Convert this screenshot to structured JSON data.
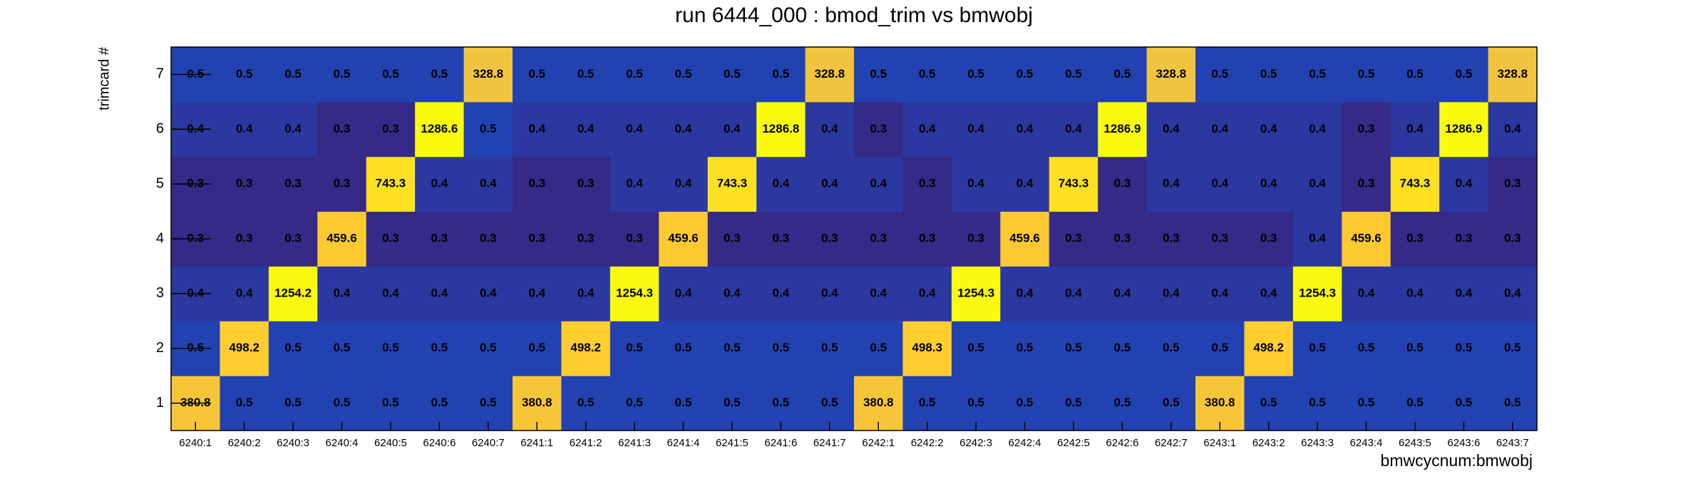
{
  "chart_data": {
    "type": "heatmap",
    "title": "run 6444_000 : bmod_trim vs bmwobj",
    "x_label": "bmwcycnum:bmwobj",
    "y_label": "trimcard #",
    "categories": [
      "6240:1",
      "6240:2",
      "6240:3",
      "6240:4",
      "6240:5",
      "6240:6",
      "6240:7",
      "6241:1",
      "6241:2",
      "6241:3",
      "6241:4",
      "6241:5",
      "6241:6",
      "6241:7",
      "6242:1",
      "6242:2",
      "6242:3",
      "6242:4",
      "6242:5",
      "6242:6",
      "6242:7",
      "6243:1",
      "6243:2",
      "6243:3",
      "6243:4",
      "6243:5",
      "6243:6",
      "6243:7"
    ],
    "y_categories": [
      1,
      2,
      3,
      4,
      5,
      6,
      7
    ],
    "z": [
      [
        380.8,
        0.5,
        0.5,
        0.5,
        0.5,
        0.5,
        0.5,
        380.8,
        0.5,
        0.5,
        0.5,
        0.5,
        0.5,
        0.5,
        380.8,
        0.5,
        0.5,
        0.5,
        0.5,
        0.5,
        0.5,
        380.8,
        0.5,
        0.5,
        0.5,
        0.5,
        0.5,
        0.5
      ],
      [
        0.5,
        498.2,
        0.5,
        0.5,
        0.5,
        0.5,
        0.5,
        0.5,
        498.2,
        0.5,
        0.5,
        0.5,
        0.5,
        0.5,
        0.5,
        498.3,
        0.5,
        0.5,
        0.5,
        0.5,
        0.5,
        0.5,
        498.2,
        0.5,
        0.5,
        0.5,
        0.5,
        0.5
      ],
      [
        0.4,
        0.4,
        1254.2,
        0.4,
        0.4,
        0.4,
        0.4,
        0.4,
        0.4,
        1254.3,
        0.4,
        0.4,
        0.4,
        0.4,
        0.4,
        0.4,
        1254.3,
        0.4,
        0.4,
        0.4,
        0.4,
        0.4,
        0.4,
        1254.3,
        0.4,
        0.4,
        0.4,
        0.4
      ],
      [
        0.3,
        0.3,
        0.3,
        459.6,
        0.3,
        0.3,
        0.3,
        0.3,
        0.3,
        0.3,
        459.6,
        0.3,
        0.3,
        0.3,
        0.3,
        0.3,
        0.3,
        459.6,
        0.3,
        0.3,
        0.3,
        0.3,
        0.3,
        0.4,
        459.6,
        0.3,
        0.3,
        0.3
      ],
      [
        0.3,
        0.3,
        0.3,
        0.3,
        743.3,
        0.4,
        0.4,
        0.3,
        0.3,
        0.4,
        0.4,
        743.3,
        0.4,
        0.4,
        0.4,
        0.3,
        0.4,
        0.4,
        743.3,
        0.3,
        0.4,
        0.4,
        0.4,
        0.4,
        0.3,
        743.3,
        0.4,
        0.3
      ],
      [
        0.4,
        0.4,
        0.4,
        0.3,
        0.3,
        1286.6,
        0.5,
        0.4,
        0.4,
        0.4,
        0.4,
        0.4,
        1286.8,
        0.4,
        0.3,
        0.4,
        0.4,
        0.4,
        0.4,
        1286.9,
        0.4,
        0.4,
        0.4,
        0.4,
        0.3,
        0.4,
        1286.9,
        0.4
      ],
      [
        0.5,
        0.5,
        0.5,
        0.5,
        0.5,
        0.5,
        328.8,
        0.5,
        0.5,
        0.5,
        0.5,
        0.5,
        0.5,
        328.8,
        0.5,
        0.5,
        0.5,
        0.5,
        0.5,
        0.5,
        328.8,
        0.5,
        0.5,
        0.5,
        0.5,
        0.5,
        0.5,
        328.8
      ]
    ],
    "log_z": true,
    "palette": [
      "#352a87",
      "#0f5cdd",
      "#1481d6",
      "#06a4ca",
      "#2eb7a4",
      "#87bf77",
      "#d1bb59",
      "#fec832",
      "#f9fb0e"
    ]
  }
}
